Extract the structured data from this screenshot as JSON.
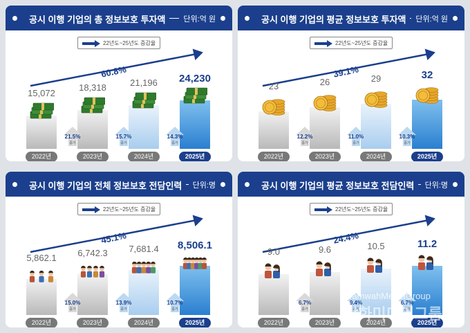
{
  "chart_data": [
    {
      "type": "bar",
      "title": "공시 이행 기업의 총 정보보호 투자액",
      "unit": "단위:억 원",
      "legend": "22년도~25년도 증감율",
      "overall_growth": "60.8%",
      "categories": [
        "2022년",
        "2023년",
        "2024년",
        "2025년"
      ],
      "values": [
        15072,
        18318,
        21196,
        24230
      ],
      "value_labels": [
        "15,072",
        "18,318",
        "21,196",
        "24,230"
      ],
      "growth": [
        "21.5%",
        "15.7%",
        "14.3%"
      ],
      "growth_label": "증가",
      "ylim": [
        0,
        26000
      ],
      "icon": "money-stack-icon"
    },
    {
      "type": "bar",
      "title": "공시 이행 기업의 평균 정보보호 투자액",
      "unit": "단위:억 원",
      "legend": "22년도~25년도 증감율",
      "overall_growth": "39.1%",
      "categories": [
        "2022년",
        "2023년",
        "2024년",
        "2025년"
      ],
      "values": [
        23,
        26,
        29,
        32
      ],
      "value_labels": [
        "23",
        "26",
        "29",
        "32"
      ],
      "growth": [
        "12.2%",
        "11.0%",
        "10.3%"
      ],
      "growth_label": "증가",
      "ylim": [
        0,
        34
      ],
      "icon": "coin-stack-icon"
    },
    {
      "type": "bar",
      "title": "공시 이행 기업의 전체 정보보호 전담인력",
      "unit": "단위:명",
      "legend": "22년도~25년도 증감율",
      "overall_growth": "45.1%",
      "categories": [
        "2022년",
        "2023년",
        "2024년",
        "2025년"
      ],
      "values": [
        5862.1,
        6742.3,
        7681.4,
        8506.1
      ],
      "value_labels": [
        "5,862.1",
        "6,742.3",
        "7,681.4",
        "8,506.1"
      ],
      "growth": [
        "15.0%",
        "13.9%",
        "10.7%"
      ],
      "growth_label": "증가",
      "ylim": [
        0,
        9000
      ],
      "icon": "people-group-icon"
    },
    {
      "type": "bar",
      "title": "공시 이행 기업의 평균 정보보호 전담인력",
      "unit": "단위:명",
      "legend": "22년도~25년도 증감율",
      "overall_growth": "24.4%",
      "categories": [
        "2022년",
        "2023년",
        "2024년",
        "2025년"
      ],
      "values": [
        9.0,
        9.6,
        10.5,
        11.2
      ],
      "value_labels": [
        "9.0",
        "9.6",
        "10.5",
        "11.2"
      ],
      "growth": [
        "6.7%",
        "9.4%",
        "6.7%"
      ],
      "growth_label": "증가",
      "ylim": [
        0,
        12
      ],
      "icon": "person-pair-icon"
    }
  ],
  "watermark": {
    "line1": "DamwahMediaGroup",
    "line2": "담화미디어그룹"
  }
}
